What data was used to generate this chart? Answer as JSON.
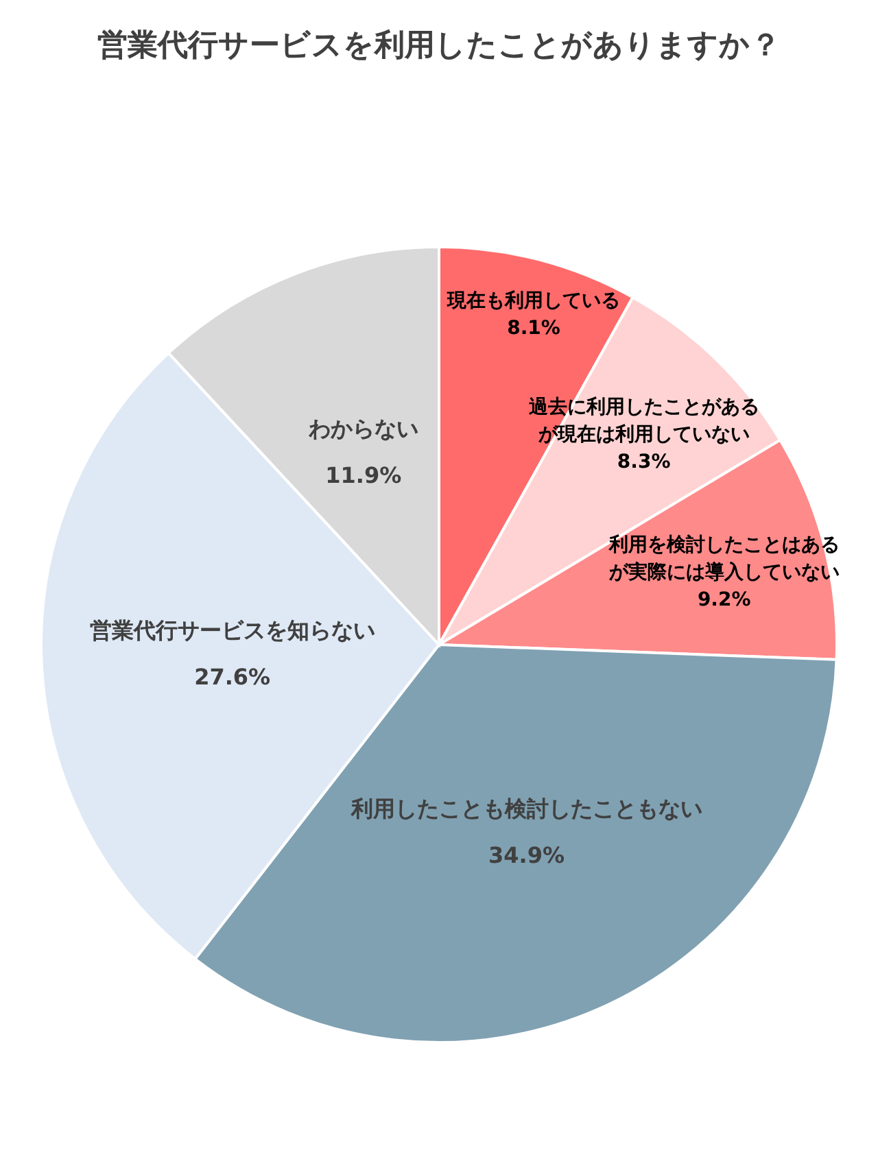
{
  "chart_data": {
    "type": "pie",
    "title": "営業代行サービスを利用したことがありますか？",
    "categories": [
      "現在も利用している",
      "過去に利用したことがあるが現在は利用していない",
      "利用を検討したことはあるが実際には導入していない",
      "利用したことも検討したこともない",
      "営業代行サービスを知らない",
      "わからない"
    ],
    "values": [
      8.1,
      8.3,
      9.2,
      34.9,
      27.6,
      11.9
    ],
    "value_labels": [
      "8.1%",
      "8.3%",
      "9.2%",
      "34.9%",
      "27.6%",
      "11.9%"
    ],
    "colors": [
      "#ff6b6b",
      "#ffd3d3",
      "#ff8a8a",
      "#80a1b2",
      "#dfe9f5",
      "#d9d9d9"
    ]
  }
}
